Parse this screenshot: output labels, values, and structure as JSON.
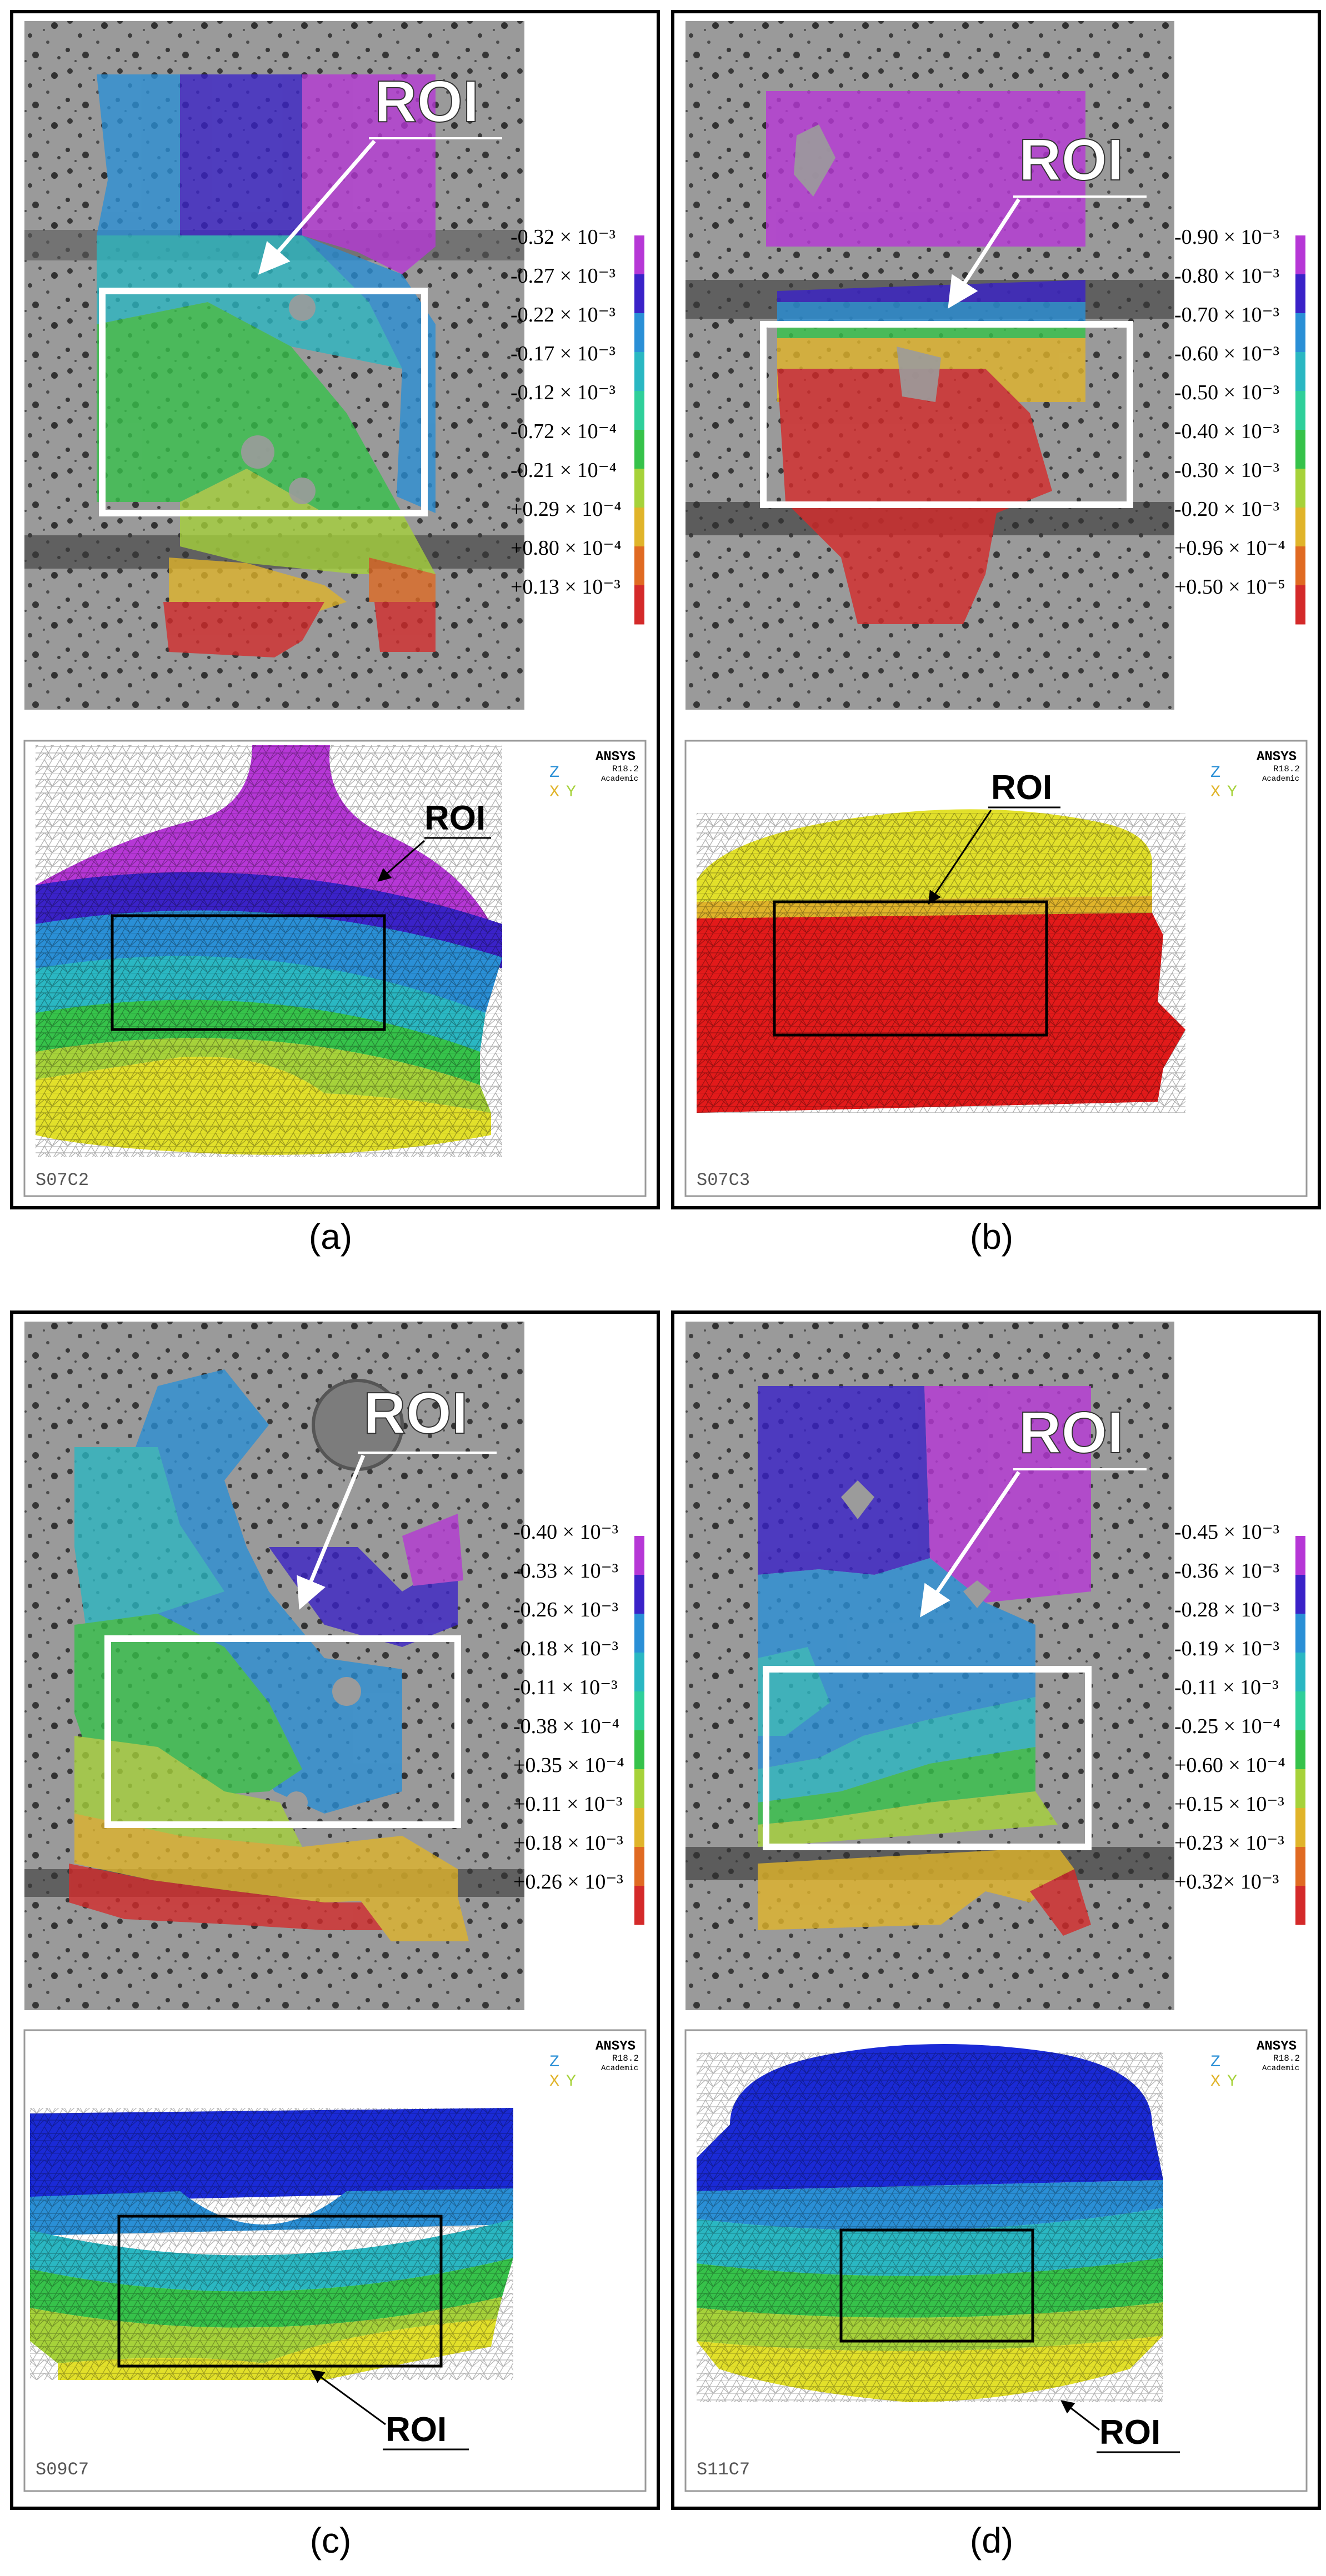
{
  "figure": {
    "captions": [
      "(a)",
      "(b)",
      "(c)",
      "(d)"
    ],
    "roi_label": "ROI",
    "ansys_label": "ANSYS",
    "ansys_version": "R18.2",
    "ansys_license": "Academic",
    "triad": {
      "z": "Z",
      "x": "X",
      "y": "Y"
    }
  },
  "panels": [
    {
      "id": "a",
      "specimen": "S07C2",
      "colorbar": {
        "labels": [
          "-0.32 × 10⁻³",
          "-0.27 × 10⁻³",
          "-0.22 × 10⁻³",
          "-0.17 × 10⁻³",
          "-0.12 × 10⁻³",
          "-0.72 × 10⁻⁴",
          "-0.21 × 10⁻⁴",
          "+0.29 × 10⁻⁴",
          "+0.80 × 10⁻⁴",
          "+0.13 × 10⁻³"
        ],
        "colors": [
          "#b637d6",
          "#3a22c8",
          "#2a8fd6",
          "#2ab7c2",
          "#2fcf9a",
          "#36c24a",
          "#a6d23a",
          "#e0b42a",
          "#e06a22",
          "#d42a2a"
        ]
      }
    },
    {
      "id": "b",
      "specimen": "S07C3",
      "colorbar": {
        "labels": [
          "-0.90 × 10⁻³",
          "-0.80 × 10⁻³",
          "-0.70 × 10⁻³",
          "-0.60 × 10⁻³",
          "-0.50 × 10⁻³",
          "-0.40 × 10⁻³",
          "-0.30 × 10⁻³",
          "-0.20 × 10⁻³",
          "+0.96 × 10⁻⁴",
          "+0.50 × 10⁻⁵"
        ],
        "colors": [
          "#b637d6",
          "#3a22c8",
          "#2a8fd6",
          "#2ab7c2",
          "#2fcf9a",
          "#36c24a",
          "#a6d23a",
          "#e0b42a",
          "#e06a22",
          "#d42a2a"
        ]
      }
    },
    {
      "id": "c",
      "specimen": "S09C7",
      "colorbar": {
        "labels": [
          "-0.40 × 10⁻³",
          "-0.33 × 10⁻³",
          "-0.26 × 10⁻³",
          "-0.18 × 10⁻³",
          "-0.11 × 10⁻³",
          "-0.38 × 10⁻⁴",
          "+0.35 × 10⁻⁴",
          "+0.11 × 10⁻³",
          "+0.18 × 10⁻³",
          "+0.26 × 10⁻³"
        ],
        "colors": [
          "#b637d6",
          "#3a22c8",
          "#2a8fd6",
          "#2ab7c2",
          "#2fcf9a",
          "#36c24a",
          "#a6d23a",
          "#e0b42a",
          "#e06a22",
          "#d42a2a"
        ]
      }
    },
    {
      "id": "d",
      "specimen": "S11C7",
      "colorbar": {
        "labels": [
          "-0.45 × 10⁻³",
          "-0.36 × 10⁻³",
          "-0.28 × 10⁻³",
          "-0.19 × 10⁻³",
          "-0.11 × 10⁻³",
          "-0.25 × 10⁻⁴",
          "+0.60 × 10⁻⁴",
          "+0.15 × 10⁻³",
          "+0.23 × 10⁻³",
          "+0.32× 10⁻³"
        ],
        "colors": [
          "#b637d6",
          "#3a22c8",
          "#2a8fd6",
          "#2ab7c2",
          "#2fcf9a",
          "#36c24a",
          "#a6d23a",
          "#e0b42a",
          "#e06a22",
          "#d42a2a"
        ]
      }
    }
  ]
}
